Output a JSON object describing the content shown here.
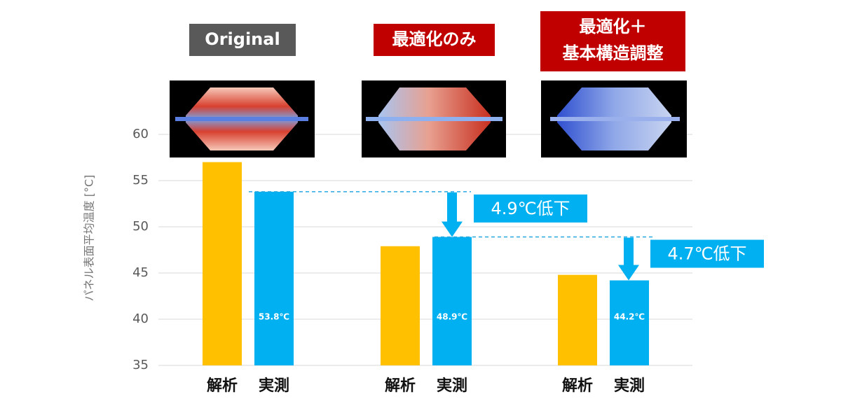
{
  "chart_data": {
    "type": "bar",
    "y_label": "パネル表面平均温度 [°C]",
    "categories": [
      [
        "Original"
      ],
      [
        "最適化のみ"
      ],
      [
        "最適化＋",
        "基本構造調整"
      ]
    ],
    "category_colors": [
      "#595959",
      "#C00000",
      "#C00000"
    ],
    "series": [
      {
        "name": "解析",
        "color": "#FFC000",
        "values": [
          57.0,
          47.9,
          44.8
        ]
      },
      {
        "name": "実測",
        "color": "#00B0F0",
        "values": [
          53.8,
          48.9,
          44.2
        ],
        "value_labels": [
          "53.8℃",
          "48.9℃",
          "44.2℃"
        ]
      }
    ],
    "ylim": [
      35,
      60
    ],
    "yticks": [
      35,
      40,
      45,
      50,
      55,
      60
    ],
    "grid": true,
    "annotations": [
      "4.9℃低下",
      "4.7℃低下"
    ]
  }
}
